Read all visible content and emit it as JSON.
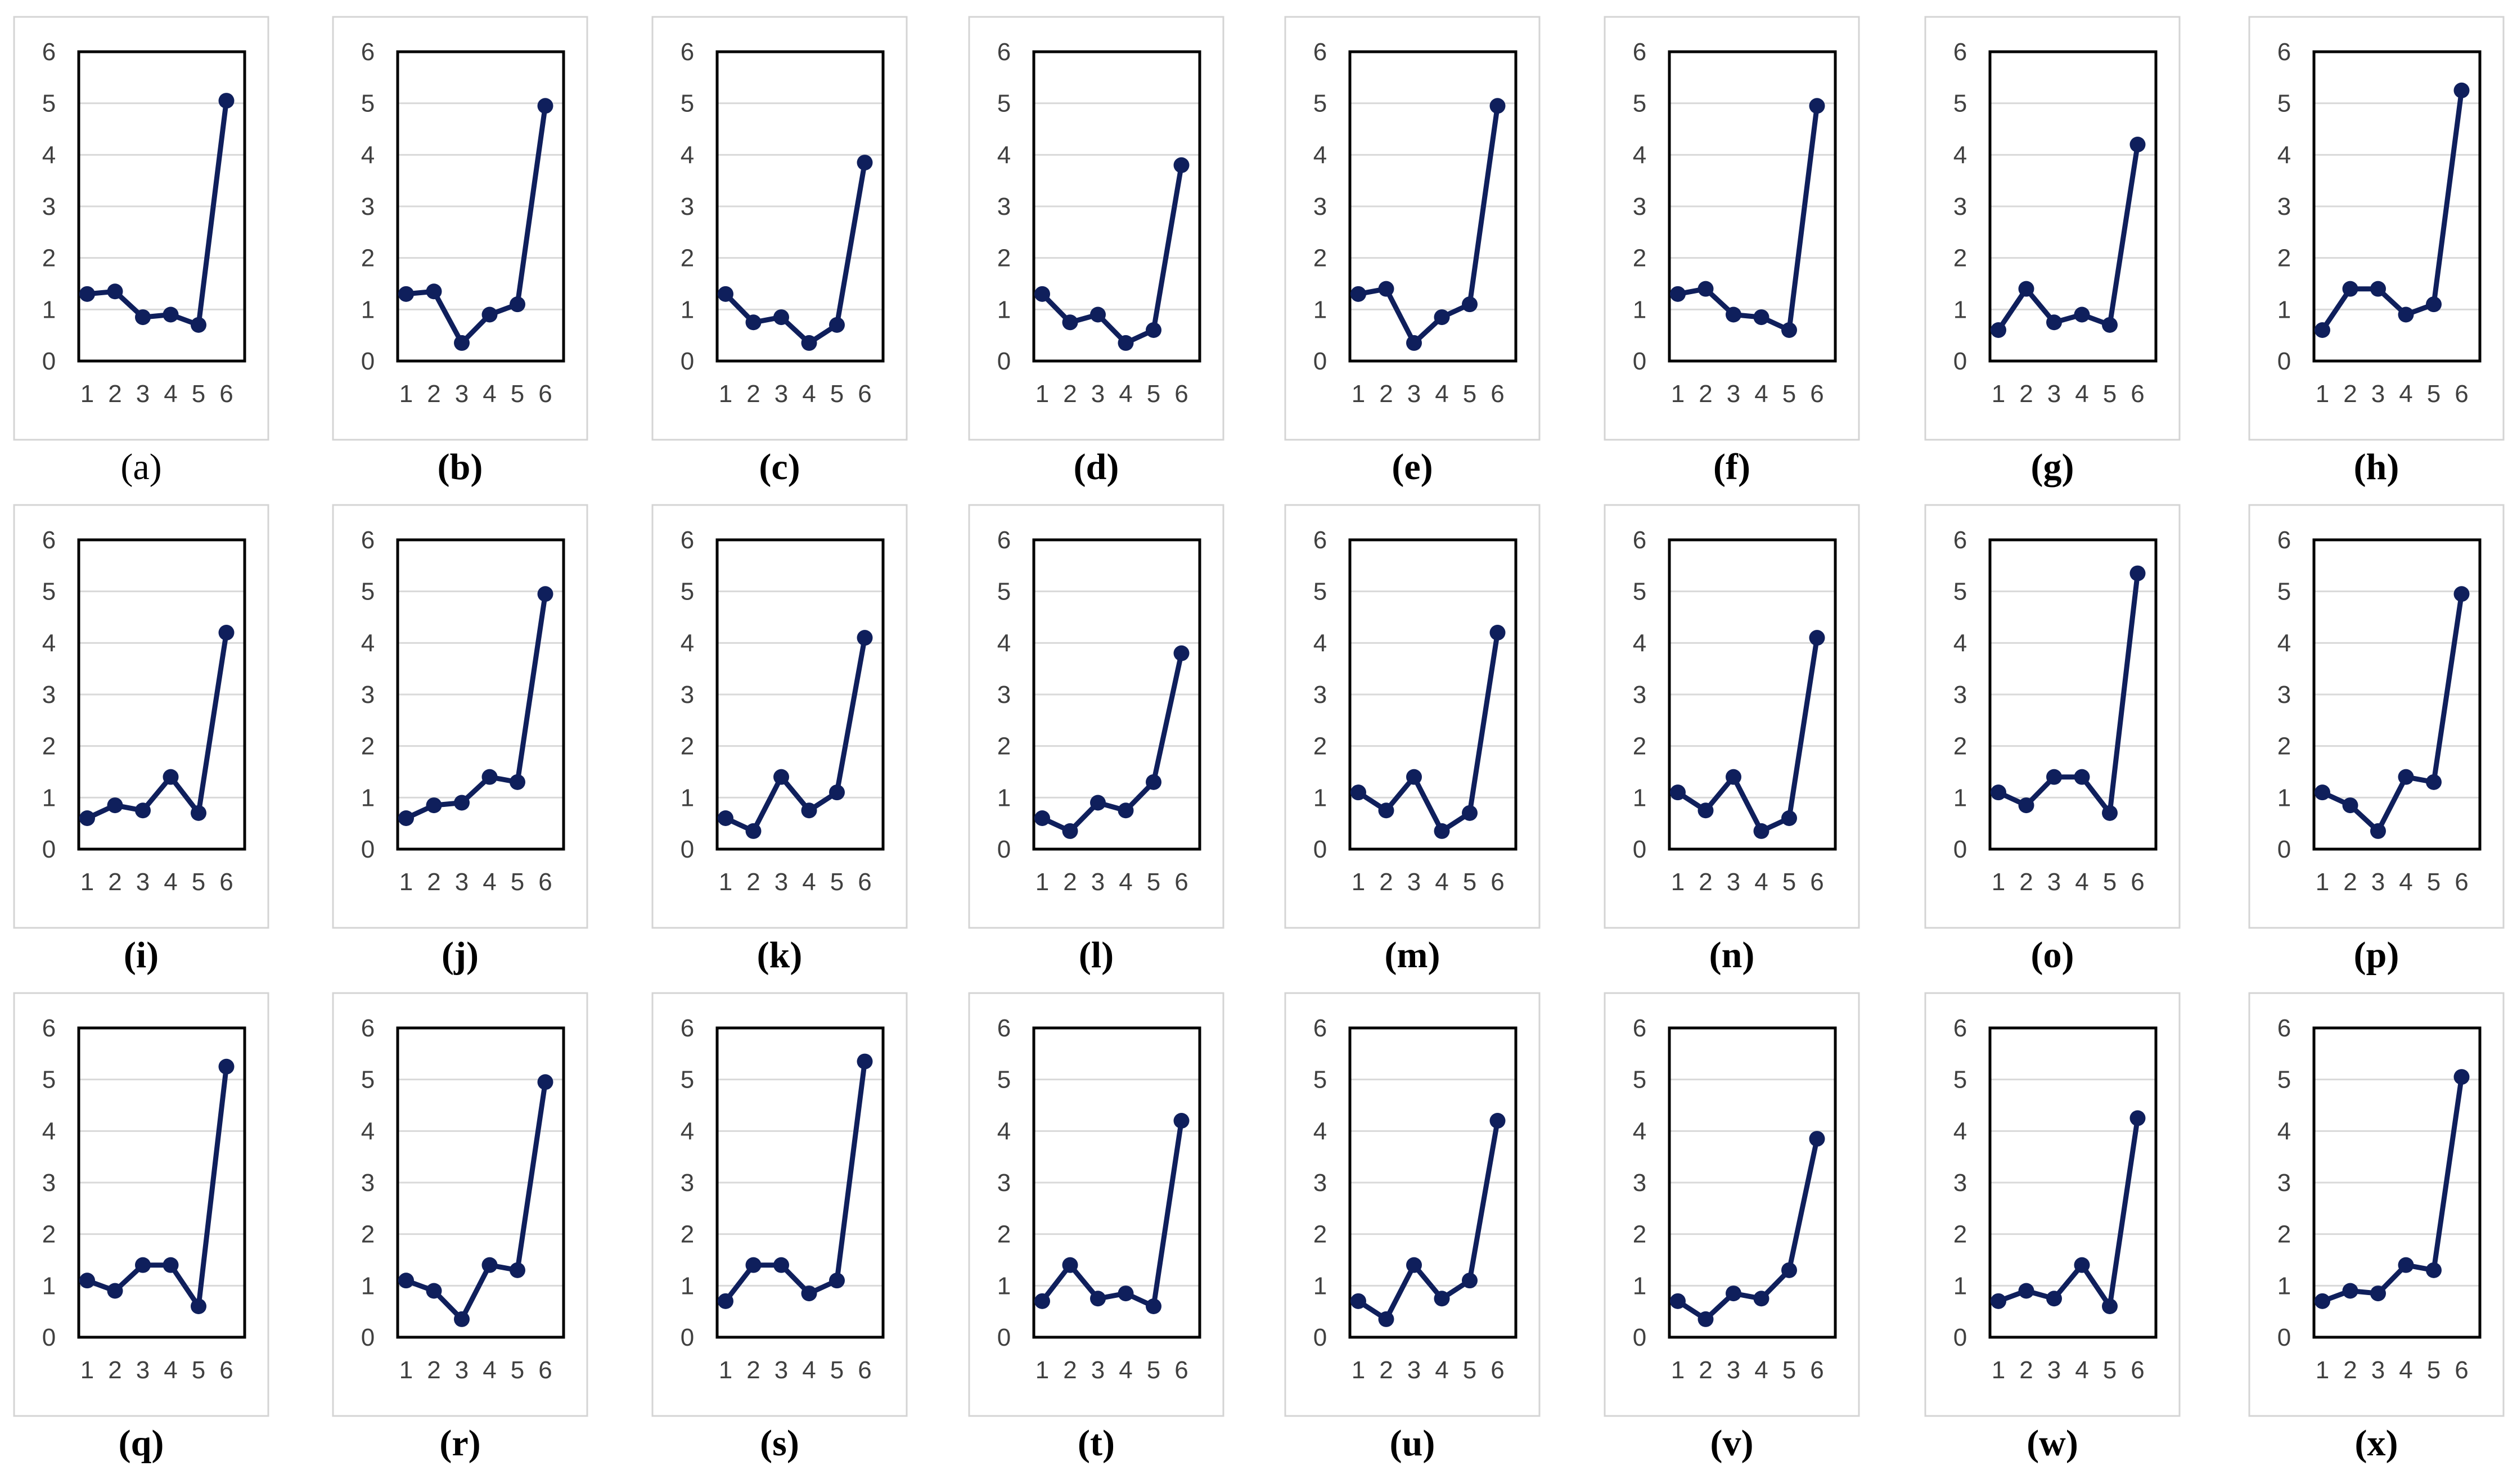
{
  "figure": {
    "title": ""
  },
  "chart_data": [
    {
      "type": "line",
      "panel_label": "(a)",
      "x": [
        1,
        2,
        3,
        4,
        5,
        6
      ],
      "values": [
        1.3,
        1.35,
        0.85,
        0.9,
        0.7,
        5.05
      ],
      "xlabel": "",
      "ylabel": "",
      "ylim": [
        0,
        6
      ],
      "yticks": [
        "0",
        "1",
        "2",
        "3",
        "4",
        "5",
        "6"
      ],
      "xticks": [
        "1",
        "2",
        "3",
        "4",
        "5",
        "6"
      ],
      "grid": true,
      "legend": "none"
    },
    {
      "type": "line",
      "panel_label": "(b)",
      "x": [
        1,
        2,
        3,
        4,
        5,
        6
      ],
      "values": [
        1.3,
        1.35,
        0.35,
        0.9,
        1.1,
        4.95
      ],
      "xlabel": "",
      "ylabel": "",
      "ylim": [
        0,
        6
      ],
      "yticks": [
        "0",
        "1",
        "2",
        "3",
        "4",
        "5",
        "6"
      ],
      "xticks": [
        "1",
        "2",
        "3",
        "4",
        "5",
        "6"
      ],
      "grid": true,
      "legend": "none"
    },
    {
      "type": "line",
      "panel_label": "(c)",
      "x": [
        1,
        2,
        3,
        4,
        5,
        6
      ],
      "values": [
        1.3,
        0.75,
        0.85,
        0.35,
        0.7,
        3.85
      ],
      "xlabel": "",
      "ylabel": "",
      "ylim": [
        0,
        6
      ],
      "yticks": [
        "0",
        "1",
        "2",
        "3",
        "4",
        "5",
        "6"
      ],
      "xticks": [
        "1",
        "2",
        "3",
        "4",
        "5",
        "6"
      ],
      "grid": true,
      "legend": "none"
    },
    {
      "type": "line",
      "panel_label": "(d)",
      "x": [
        1,
        2,
        3,
        4,
        5,
        6
      ],
      "values": [
        1.3,
        0.75,
        0.9,
        0.35,
        0.6,
        3.8
      ],
      "xlabel": "",
      "ylabel": "",
      "ylim": [
        0,
        6
      ],
      "yticks": [
        "0",
        "1",
        "2",
        "3",
        "4",
        "5",
        "6"
      ],
      "xticks": [
        "1",
        "2",
        "3",
        "4",
        "5",
        "6"
      ],
      "grid": true,
      "legend": "none"
    },
    {
      "type": "line",
      "panel_label": "(e)",
      "x": [
        1,
        2,
        3,
        4,
        5,
        6
      ],
      "values": [
        1.3,
        1.4,
        0.35,
        0.85,
        1.1,
        4.95
      ],
      "xlabel": "",
      "ylabel": "",
      "ylim": [
        0,
        6
      ],
      "yticks": [
        "0",
        "1",
        "2",
        "3",
        "4",
        "5",
        "6"
      ],
      "xticks": [
        "1",
        "2",
        "3",
        "4",
        "5",
        "6"
      ],
      "grid": true,
      "legend": "none"
    },
    {
      "type": "line",
      "panel_label": "(f)",
      "x": [
        1,
        2,
        3,
        4,
        5,
        6
      ],
      "values": [
        1.3,
        1.4,
        0.9,
        0.85,
        0.6,
        4.95
      ],
      "xlabel": "",
      "ylabel": "",
      "ylim": [
        0,
        6
      ],
      "yticks": [
        "0",
        "1",
        "2",
        "3",
        "4",
        "5",
        "6"
      ],
      "xticks": [
        "1",
        "2",
        "3",
        "4",
        "5",
        "6"
      ],
      "grid": true,
      "legend": "none"
    },
    {
      "type": "line",
      "panel_label": "(g)",
      "x": [
        1,
        2,
        3,
        4,
        5,
        6
      ],
      "values": [
        0.6,
        1.4,
        0.75,
        0.9,
        0.7,
        4.2
      ],
      "xlabel": "",
      "ylabel": "",
      "ylim": [
        0,
        6
      ],
      "yticks": [
        "0",
        "1",
        "2",
        "3",
        "4",
        "5",
        "6"
      ],
      "xticks": [
        "1",
        "2",
        "3",
        "4",
        "5",
        "6"
      ],
      "grid": true,
      "legend": "none"
    },
    {
      "type": "line",
      "panel_label": "(h)",
      "x": [
        1,
        2,
        3,
        4,
        5,
        6
      ],
      "values": [
        0.6,
        1.4,
        1.4,
        0.9,
        1.1,
        5.25
      ],
      "xlabel": "",
      "ylabel": "",
      "ylim": [
        0,
        6
      ],
      "yticks": [
        "0",
        "1",
        "2",
        "3",
        "4",
        "5",
        "6"
      ],
      "xticks": [
        "1",
        "2",
        "3",
        "4",
        "5",
        "6"
      ],
      "grid": true,
      "legend": "none"
    },
    {
      "type": "line",
      "panel_label": "(i)",
      "x": [
        1,
        2,
        3,
        4,
        5,
        6
      ],
      "values": [
        0.6,
        0.85,
        0.75,
        1.4,
        0.7,
        4.2
      ],
      "xlabel": "",
      "ylabel": "",
      "ylim": [
        0,
        6
      ],
      "yticks": [
        "0",
        "1",
        "2",
        "3",
        "4",
        "5",
        "6"
      ],
      "xticks": [
        "1",
        "2",
        "3",
        "4",
        "5",
        "6"
      ],
      "grid": true,
      "legend": "none"
    },
    {
      "type": "line",
      "panel_label": "(j)",
      "x": [
        1,
        2,
        3,
        4,
        5,
        6
      ],
      "values": [
        0.6,
        0.85,
        0.9,
        1.4,
        1.3,
        4.95
      ],
      "xlabel": "",
      "ylabel": "",
      "ylim": [
        0,
        6
      ],
      "yticks": [
        "0",
        "1",
        "2",
        "3",
        "4",
        "5",
        "6"
      ],
      "xticks": [
        "1",
        "2",
        "3",
        "4",
        "5",
        "6"
      ],
      "grid": true,
      "legend": "none"
    },
    {
      "type": "line",
      "panel_label": "(k)",
      "x": [
        1,
        2,
        3,
        4,
        5,
        6
      ],
      "values": [
        0.6,
        0.35,
        1.4,
        0.75,
        1.1,
        4.1
      ],
      "xlabel": "",
      "ylabel": "",
      "ylim": [
        0,
        6
      ],
      "yticks": [
        "0",
        "1",
        "2",
        "3",
        "4",
        "5",
        "6"
      ],
      "xticks": [
        "1",
        "2",
        "3",
        "4",
        "5",
        "6"
      ],
      "grid": true,
      "legend": "none"
    },
    {
      "type": "line",
      "panel_label": "(l)",
      "x": [
        1,
        2,
        3,
        4,
        5,
        6
      ],
      "values": [
        0.6,
        0.35,
        0.9,
        0.75,
        1.3,
        3.8
      ],
      "xlabel": "",
      "ylabel": "",
      "ylim": [
        0,
        6
      ],
      "yticks": [
        "0",
        "1",
        "2",
        "3",
        "4",
        "5",
        "6"
      ],
      "xticks": [
        "1",
        "2",
        "3",
        "4",
        "5",
        "6"
      ],
      "grid": true,
      "legend": "none"
    },
    {
      "type": "line",
      "panel_label": "(m)",
      "x": [
        1,
        2,
        3,
        4,
        5,
        6
      ],
      "values": [
        1.1,
        0.75,
        1.4,
        0.35,
        0.7,
        4.2
      ],
      "xlabel": "",
      "ylabel": "",
      "ylim": [
        0,
        6
      ],
      "yticks": [
        "0",
        "1",
        "2",
        "3",
        "4",
        "5",
        "6"
      ],
      "xticks": [
        "1",
        "2",
        "3",
        "4",
        "5",
        "6"
      ],
      "grid": true,
      "legend": "none"
    },
    {
      "type": "line",
      "panel_label": "(n)",
      "x": [
        1,
        2,
        3,
        4,
        5,
        6
      ],
      "values": [
        1.1,
        0.75,
        1.4,
        0.35,
        0.6,
        4.1
      ],
      "xlabel": "",
      "ylabel": "",
      "ylim": [
        0,
        6
      ],
      "yticks": [
        "0",
        "1",
        "2",
        "3",
        "4",
        "5",
        "6"
      ],
      "xticks": [
        "1",
        "2",
        "3",
        "4",
        "5",
        "6"
      ],
      "grid": true,
      "legend": "none"
    },
    {
      "type": "line",
      "panel_label": "(o)",
      "x": [
        1,
        2,
        3,
        4,
        5,
        6
      ],
      "values": [
        1.1,
        0.85,
        1.4,
        1.4,
        0.7,
        5.35
      ],
      "xlabel": "",
      "ylabel": "",
      "ylim": [
        0,
        6
      ],
      "yticks": [
        "0",
        "1",
        "2",
        "3",
        "4",
        "5",
        "6"
      ],
      "xticks": [
        "1",
        "2",
        "3",
        "4",
        "5",
        "6"
      ],
      "grid": true,
      "legend": "none"
    },
    {
      "type": "line",
      "panel_label": "(p)",
      "x": [
        1,
        2,
        3,
        4,
        5,
        6
      ],
      "values": [
        1.1,
        0.85,
        0.35,
        1.4,
        1.3,
        4.95
      ],
      "xlabel": "",
      "ylabel": "",
      "ylim": [
        0,
        6
      ],
      "yticks": [
        "0",
        "1",
        "2",
        "3",
        "4",
        "5",
        "6"
      ],
      "xticks": [
        "1",
        "2",
        "3",
        "4",
        "5",
        "6"
      ],
      "grid": true,
      "legend": "none"
    },
    {
      "type": "line",
      "panel_label": "(q)",
      "x": [
        1,
        2,
        3,
        4,
        5,
        6
      ],
      "values": [
        1.1,
        0.9,
        1.4,
        1.4,
        0.6,
        5.25
      ],
      "xlabel": "",
      "ylabel": "",
      "ylim": [
        0,
        6
      ],
      "yticks": [
        "0",
        "1",
        "2",
        "3",
        "4",
        "5",
        "6"
      ],
      "xticks": [
        "1",
        "2",
        "3",
        "4",
        "5",
        "6"
      ],
      "grid": true,
      "legend": "none"
    },
    {
      "type": "line",
      "panel_label": "(r)",
      "x": [
        1,
        2,
        3,
        4,
        5,
        6
      ],
      "values": [
        1.1,
        0.9,
        0.35,
        1.4,
        1.3,
        4.95
      ],
      "xlabel": "",
      "ylabel": "",
      "ylim": [
        0,
        6
      ],
      "yticks": [
        "0",
        "1",
        "2",
        "3",
        "4",
        "5",
        "6"
      ],
      "xticks": [
        "1",
        "2",
        "3",
        "4",
        "5",
        "6"
      ],
      "grid": true,
      "legend": "none"
    },
    {
      "type": "line",
      "panel_label": "(s)",
      "x": [
        1,
        2,
        3,
        4,
        5,
        6
      ],
      "values": [
        0.7,
        1.4,
        1.4,
        0.85,
        1.1,
        5.35
      ],
      "xlabel": "",
      "ylabel": "",
      "ylim": [
        0,
        6
      ],
      "yticks": [
        "0",
        "1",
        "2",
        "3",
        "4",
        "5",
        "6"
      ],
      "xticks": [
        "1",
        "2",
        "3",
        "4",
        "5",
        "6"
      ],
      "grid": true,
      "legend": "none"
    },
    {
      "type": "line",
      "panel_label": "(t)",
      "x": [
        1,
        2,
        3,
        4,
        5,
        6
      ],
      "values": [
        0.7,
        1.4,
        0.75,
        0.85,
        0.6,
        4.2
      ],
      "xlabel": "",
      "ylabel": "",
      "ylim": [
        0,
        6
      ],
      "yticks": [
        "0",
        "1",
        "2",
        "3",
        "4",
        "5",
        "6"
      ],
      "xticks": [
        "1",
        "2",
        "3",
        "4",
        "5",
        "6"
      ],
      "grid": true,
      "legend": "none"
    },
    {
      "type": "line",
      "panel_label": "(u)",
      "x": [
        1,
        2,
        3,
        4,
        5,
        6
      ],
      "values": [
        0.7,
        0.35,
        1.4,
        0.75,
        1.1,
        4.2
      ],
      "xlabel": "",
      "ylabel": "",
      "ylim": [
        0,
        6
      ],
      "yticks": [
        "0",
        "1",
        "2",
        "3",
        "4",
        "5",
        "6"
      ],
      "xticks": [
        "1",
        "2",
        "3",
        "4",
        "5",
        "6"
      ],
      "grid": true,
      "legend": "none"
    },
    {
      "type": "line",
      "panel_label": "(v)",
      "x": [
        1,
        2,
        3,
        4,
        5,
        6
      ],
      "values": [
        0.7,
        0.35,
        0.85,
        0.75,
        1.3,
        3.85
      ],
      "xlabel": "",
      "ylabel": "",
      "ylim": [
        0,
        6
      ],
      "yticks": [
        "0",
        "1",
        "2",
        "3",
        "4",
        "5",
        "6"
      ],
      "xticks": [
        "1",
        "2",
        "3",
        "4",
        "5",
        "6"
      ],
      "grid": true,
      "legend": "none"
    },
    {
      "type": "line",
      "panel_label": "(w)",
      "x": [
        1,
        2,
        3,
        4,
        5,
        6
      ],
      "values": [
        0.7,
        0.9,
        0.75,
        1.4,
        0.6,
        4.25
      ],
      "xlabel": "",
      "ylabel": "",
      "ylim": [
        0,
        6
      ],
      "yticks": [
        "0",
        "1",
        "2",
        "3",
        "4",
        "5",
        "6"
      ],
      "xticks": [
        "1",
        "2",
        "3",
        "4",
        "5",
        "6"
      ],
      "grid": true,
      "legend": "none"
    },
    {
      "type": "line",
      "panel_label": "(x)",
      "x": [
        1,
        2,
        3,
        4,
        5,
        6
      ],
      "values": [
        0.7,
        0.9,
        0.85,
        1.4,
        1.3,
        5.05
      ],
      "xlabel": "",
      "ylabel": "",
      "ylim": [
        0,
        6
      ],
      "yticks": [
        "0",
        "1",
        "2",
        "3",
        "4",
        "5",
        "6"
      ],
      "xticks": [
        "1",
        "2",
        "3",
        "4",
        "5",
        "6"
      ],
      "grid": true,
      "legend": "none"
    }
  ],
  "style": {
    "line_color": "#0f1f5c",
    "grid_color": "#d9d9d9",
    "frame_color": "#000000",
    "panel_border_color": "#d4d4d4"
  }
}
